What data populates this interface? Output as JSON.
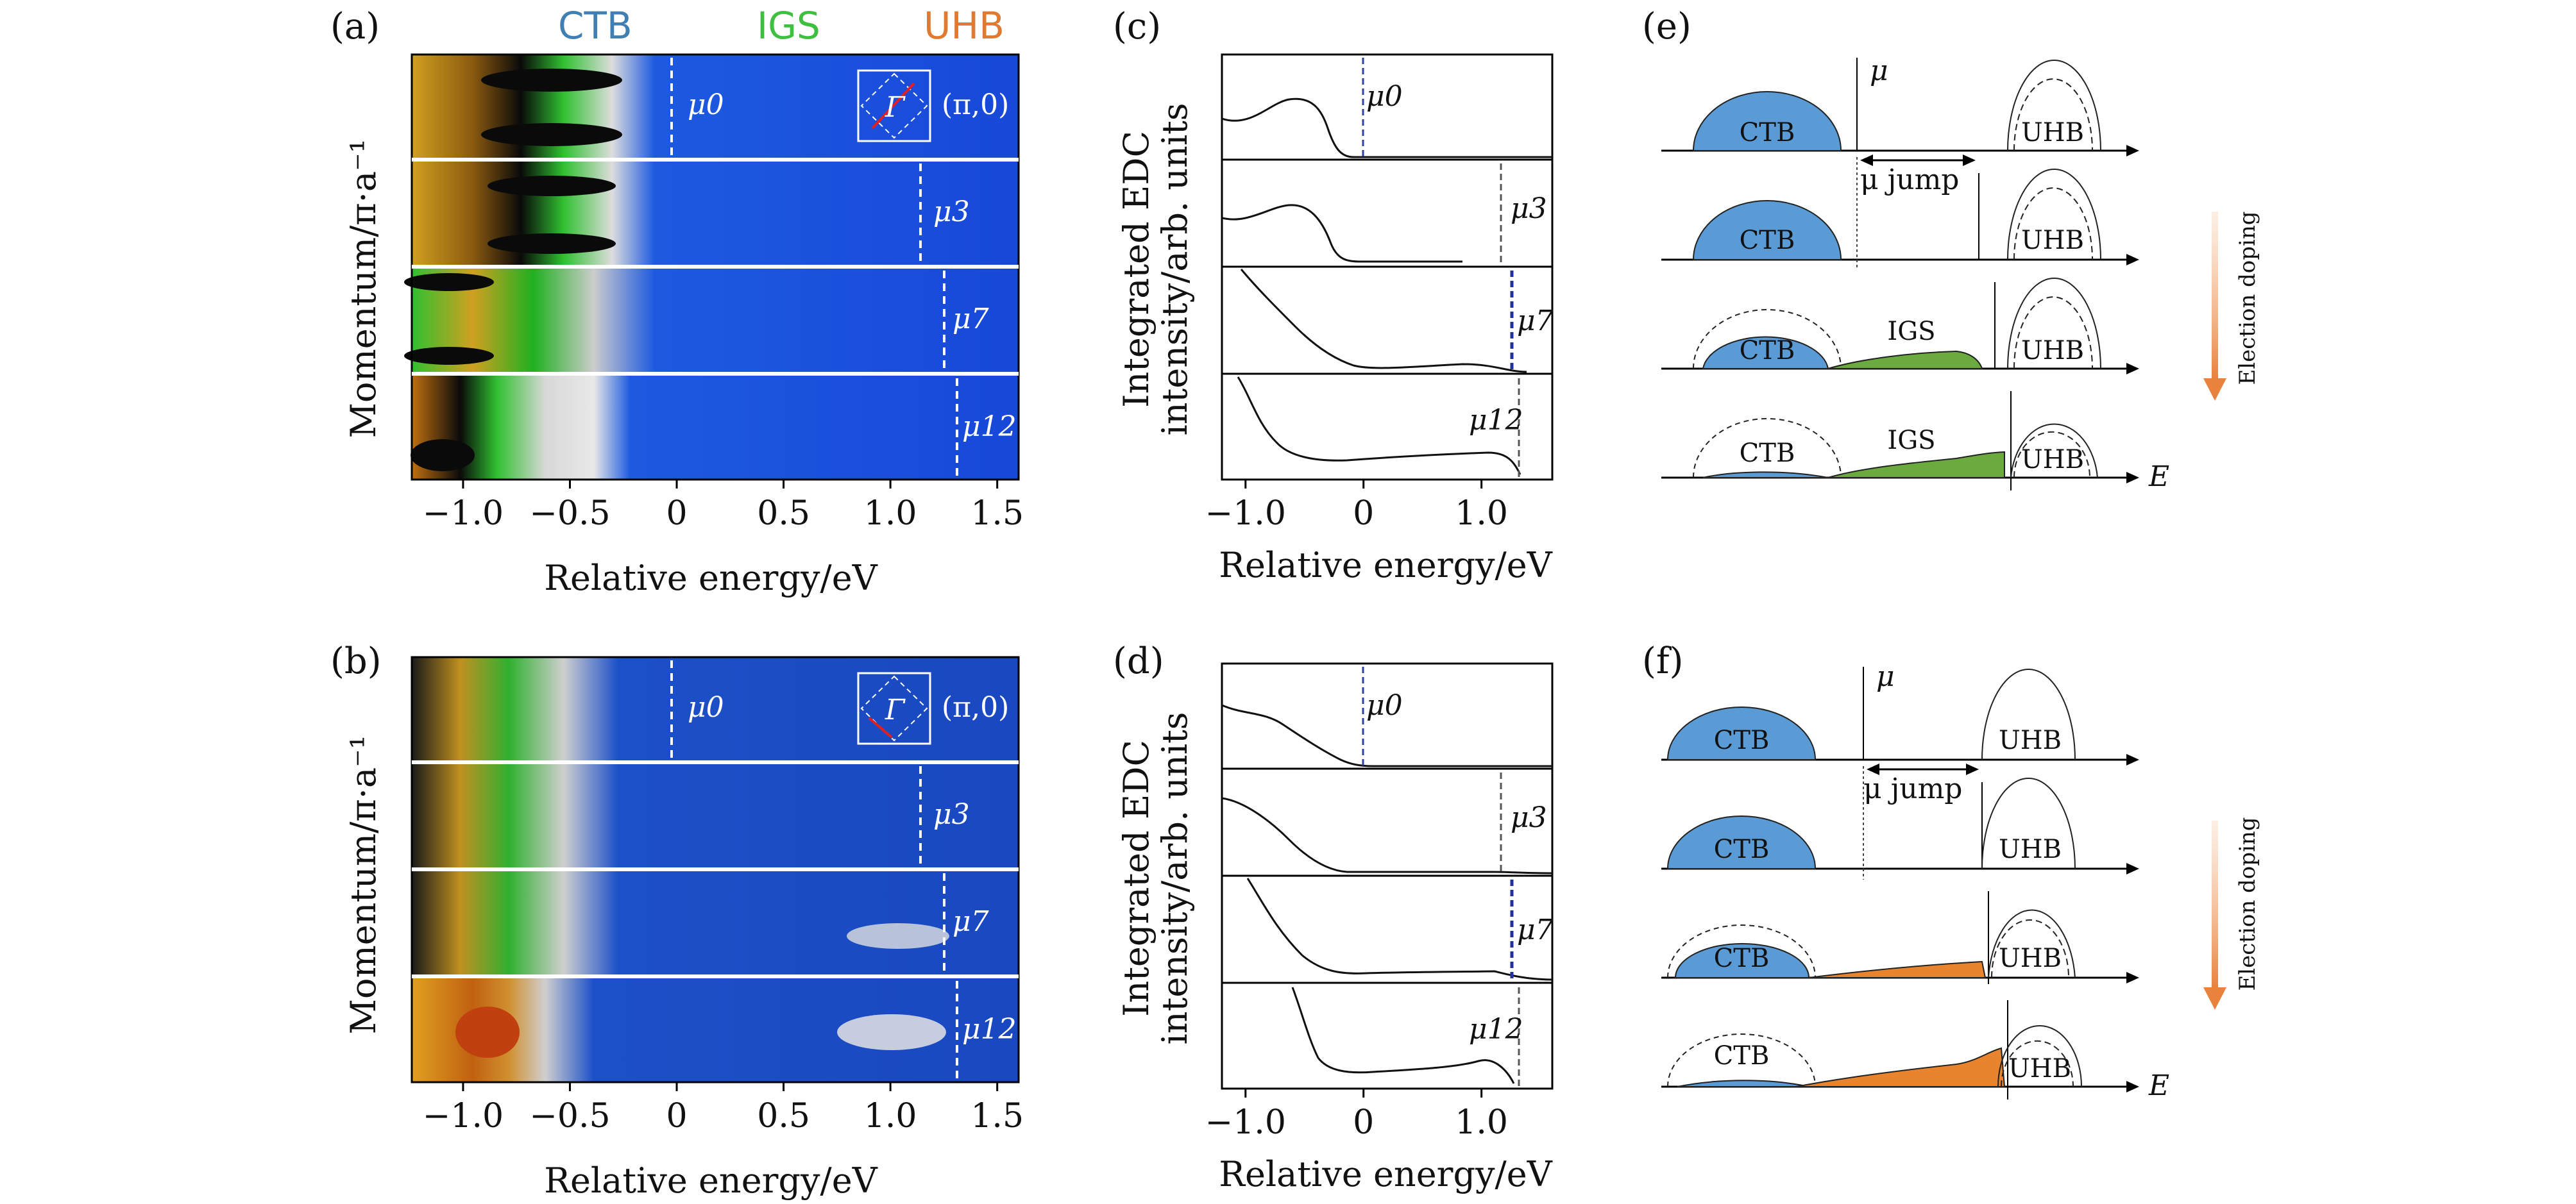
{
  "figure": {
    "band_labels": [
      {
        "text": "CTB",
        "color": "#3f7fb3"
      },
      {
        "text": "IGS",
        "color": "#3fbf3f"
      },
      {
        "text": "UHB",
        "color": "#e07a32"
      }
    ],
    "panel_labels": {
      "a": "(a)",
      "b": "(b)",
      "c": "(c)",
      "d": "(d)",
      "e": "(e)",
      "f": "(f)"
    },
    "momentum_axis_label": "Momentum/π·a⁻¹",
    "edc_axis_label_line1": "Integrated EDC",
    "edc_axis_label_line2": "intensity/arb. units",
    "energy_axis_label": "Relative energy/eV",
    "inset_gamma": "Γ",
    "inset_k": "(π,0)",
    "arpes_xticks": [
      "−1.0",
      "−0.5",
      "0",
      "0.5",
      "1.0",
      "1.5"
    ],
    "edc_xticks": [
      "−1.0",
      "0",
      "1.0"
    ],
    "mu_labels": [
      "μ0",
      "μ3",
      "μ7",
      "μ12"
    ],
    "mu_sub_base": "μ",
    "mu_subscripts": [
      "0",
      "3",
      "7",
      "12"
    ],
    "mu_energy_eV": [
      0,
      1.15,
      1.25,
      1.3
    ],
    "schematic": {
      "mu": "μ",
      "mu_jump": "μ jump",
      "ctb": "CTB",
      "igs": "IGS",
      "uhb": "UHB",
      "E": "E",
      "doping": "Election doping",
      "igs_color_e": "#6aaa3f",
      "igs_color_f": "#e8832e",
      "ctb_color": "#5b9bd5"
    }
  }
}
